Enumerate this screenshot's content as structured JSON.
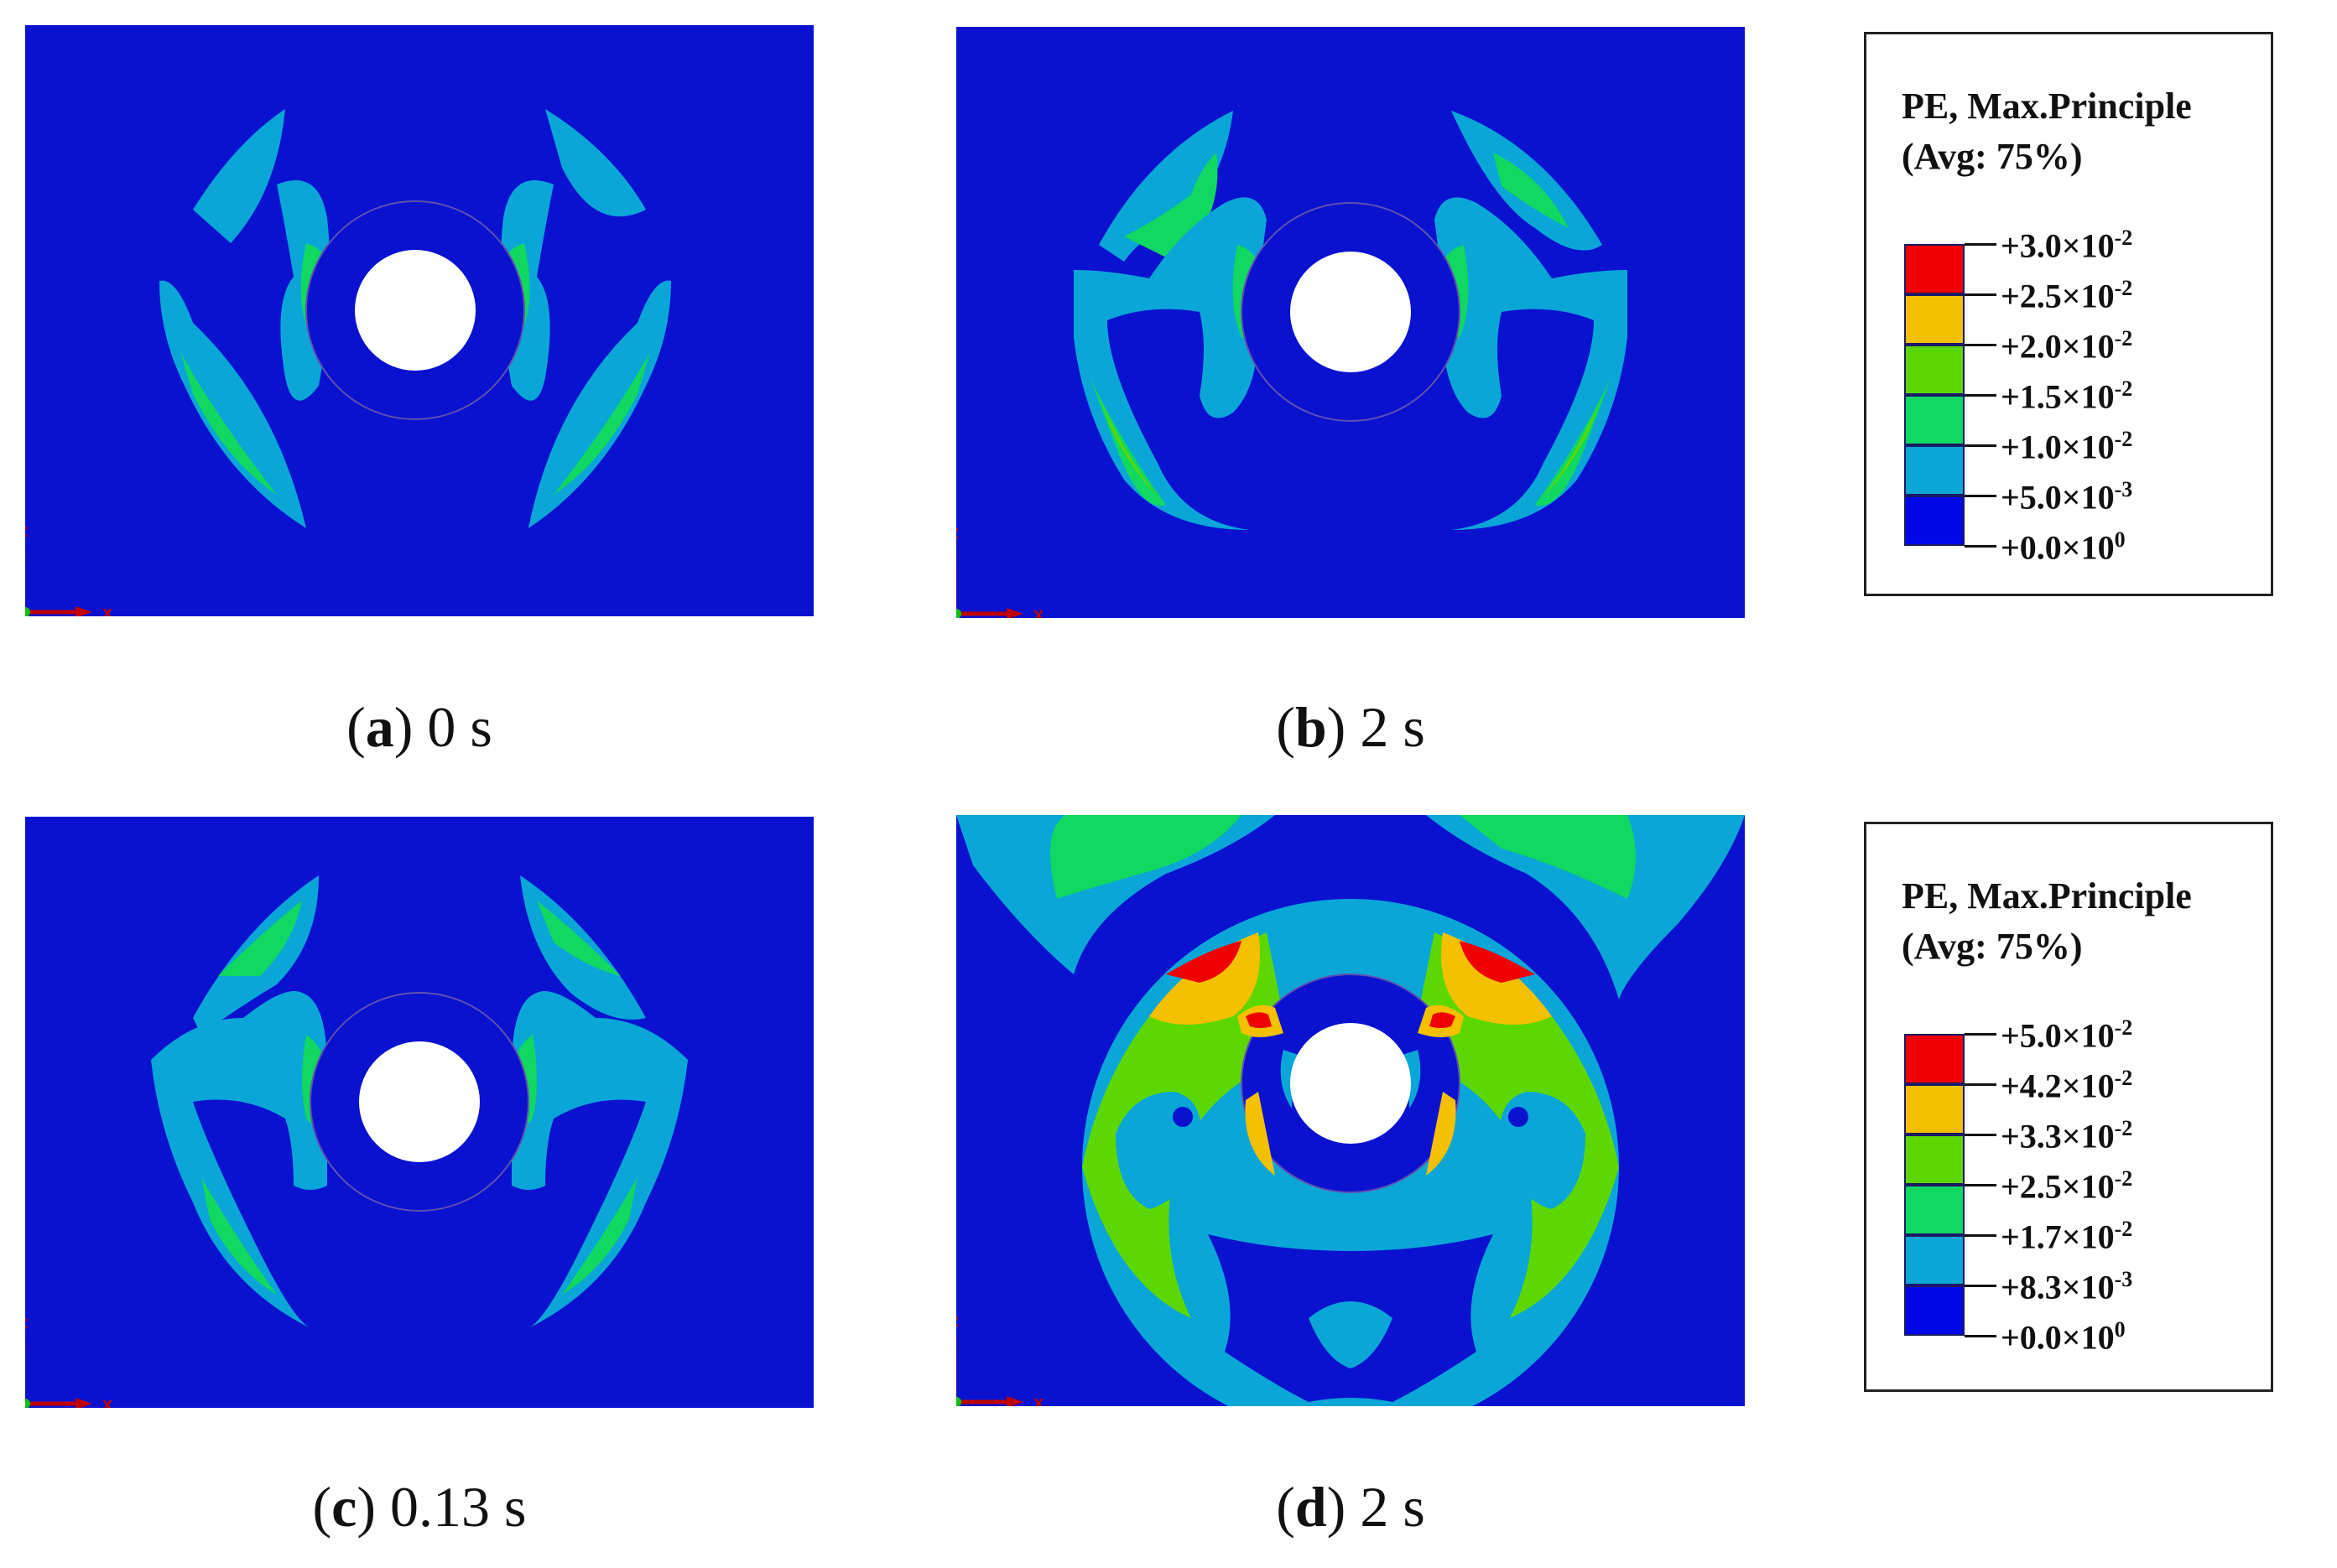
{
  "captions": {
    "a": {
      "letter": "a",
      "time": "0 s"
    },
    "b": {
      "letter": "b",
      "time": "2 s"
    },
    "c": {
      "letter": "c",
      "time": "0.13 s"
    },
    "d": {
      "letter": "d",
      "time": "2 s"
    }
  },
  "axis_labels": {
    "x": "x",
    "z": "z"
  },
  "legend_top": {
    "title_line1": "PE, Max.Principle",
    "title_line2": "(Avg: 75%)",
    "ticks": [
      {
        "mant": "+3.0×10",
        "exp": "-2"
      },
      {
        "mant": "+2.5×10",
        "exp": "-2"
      },
      {
        "mant": "+2.0×10",
        "exp": "-2"
      },
      {
        "mant": "+1.5×10",
        "exp": "-2"
      },
      {
        "mant": "+1.0×10",
        "exp": "-2"
      },
      {
        "mant": "+5.0×10",
        "exp": "-3"
      },
      {
        "mant": "+0.0×10",
        "exp": "0"
      }
    ]
  },
  "legend_bottom": {
    "title_line1": "PE, Max.Principle",
    "title_line2": "(Avg: 75%)",
    "ticks": [
      {
        "mant": "+5.0×10",
        "exp": "-2"
      },
      {
        "mant": "+4.2×10",
        "exp": "-2"
      },
      {
        "mant": "+3.3×10",
        "exp": "-2"
      },
      {
        "mant": "+2.5×10",
        "exp": "-2"
      },
      {
        "mant": "+1.7×10",
        "exp": "-2"
      },
      {
        "mant": "+8.3×10",
        "exp": "-3"
      },
      {
        "mant": "+0.0×10",
        "exp": "0"
      }
    ]
  },
  "colors": {
    "background_blue": "#0a12d0",
    "cyan": "#0aa6d8",
    "green_light": "#10d860",
    "green": "#5cd800",
    "yellow": "#f4c000",
    "orange": "#f48000",
    "red": "#f00000",
    "axis_red": "#c00000",
    "axis_blue": "#1010c0"
  },
  "swatch_colors": [
    "#f00000",
    "#f4c000",
    "#5cd800",
    "#10d860",
    "#0aa6d8",
    "#00c8f0",
    "#0008e8"
  ]
}
